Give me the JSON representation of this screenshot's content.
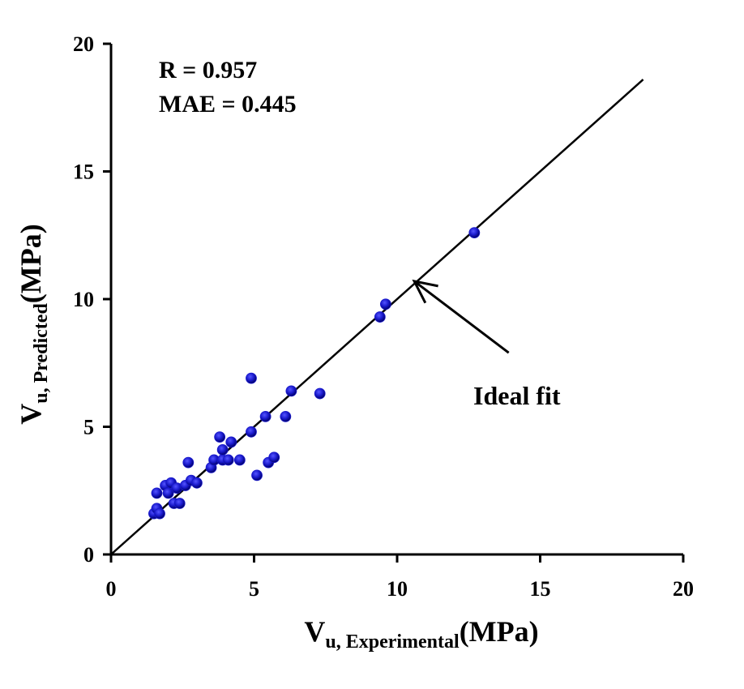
{
  "chart_data": {
    "type": "scatter",
    "xlim": [
      0,
      20
    ],
    "ylim": [
      0,
      20
    ],
    "x_ticks": [
      "0",
      "5",
      "10",
      "15",
      "20"
    ],
    "y_ticks": [
      "0",
      "5",
      "10",
      "15",
      "20"
    ],
    "xlabel": {
      "main": "V",
      "sub": "u, Experimental",
      "unit": "(MPa)"
    },
    "ylabel": {
      "main": "V",
      "sub": "u, Predicted",
      "unit": "(MPa)"
    },
    "stats": [
      "R = 0.957",
      "MAE = 0.445"
    ],
    "ideal_line": {
      "x": [
        0,
        18.6
      ],
      "y": [
        0,
        18.6
      ]
    },
    "annotation": {
      "text": "Ideal fit",
      "arrow_from": [
        13.9,
        7.9
      ],
      "arrow_to": [
        10.6,
        10.7
      ]
    },
    "marker_color": "#1a1acc",
    "points": [
      {
        "x": 1.5,
        "y": 1.6
      },
      {
        "x": 1.6,
        "y": 1.8
      },
      {
        "x": 1.7,
        "y": 1.6
      },
      {
        "x": 1.6,
        "y": 2.4
      },
      {
        "x": 1.9,
        "y": 2.7
      },
      {
        "x": 2.0,
        "y": 2.4
      },
      {
        "x": 2.1,
        "y": 2.8
      },
      {
        "x": 2.2,
        "y": 2.0
      },
      {
        "x": 2.3,
        "y": 2.6
      },
      {
        "x": 2.4,
        "y": 2.0
      },
      {
        "x": 2.6,
        "y": 2.7
      },
      {
        "x": 2.7,
        "y": 3.6
      },
      {
        "x": 2.8,
        "y": 2.9
      },
      {
        "x": 3.0,
        "y": 2.8
      },
      {
        "x": 3.5,
        "y": 3.4
      },
      {
        "x": 3.6,
        "y": 3.7
      },
      {
        "x": 3.8,
        "y": 4.6
      },
      {
        "x": 3.9,
        "y": 3.7
      },
      {
        "x": 3.9,
        "y": 4.1
      },
      {
        "x": 4.1,
        "y": 3.7
      },
      {
        "x": 4.2,
        "y": 4.4
      },
      {
        "x": 4.5,
        "y": 3.7
      },
      {
        "x": 4.9,
        "y": 4.8
      },
      {
        "x": 4.9,
        "y": 6.9
      },
      {
        "x": 5.1,
        "y": 3.1
      },
      {
        "x": 5.4,
        "y": 5.4
      },
      {
        "x": 5.5,
        "y": 3.6
      },
      {
        "x": 5.7,
        "y": 3.8
      },
      {
        "x": 6.1,
        "y": 5.4
      },
      {
        "x": 6.3,
        "y": 6.4
      },
      {
        "x": 7.3,
        "y": 6.3
      },
      {
        "x": 9.4,
        "y": 9.3
      },
      {
        "x": 9.6,
        "y": 9.8
      },
      {
        "x": 12.7,
        "y": 12.6
      }
    ]
  }
}
